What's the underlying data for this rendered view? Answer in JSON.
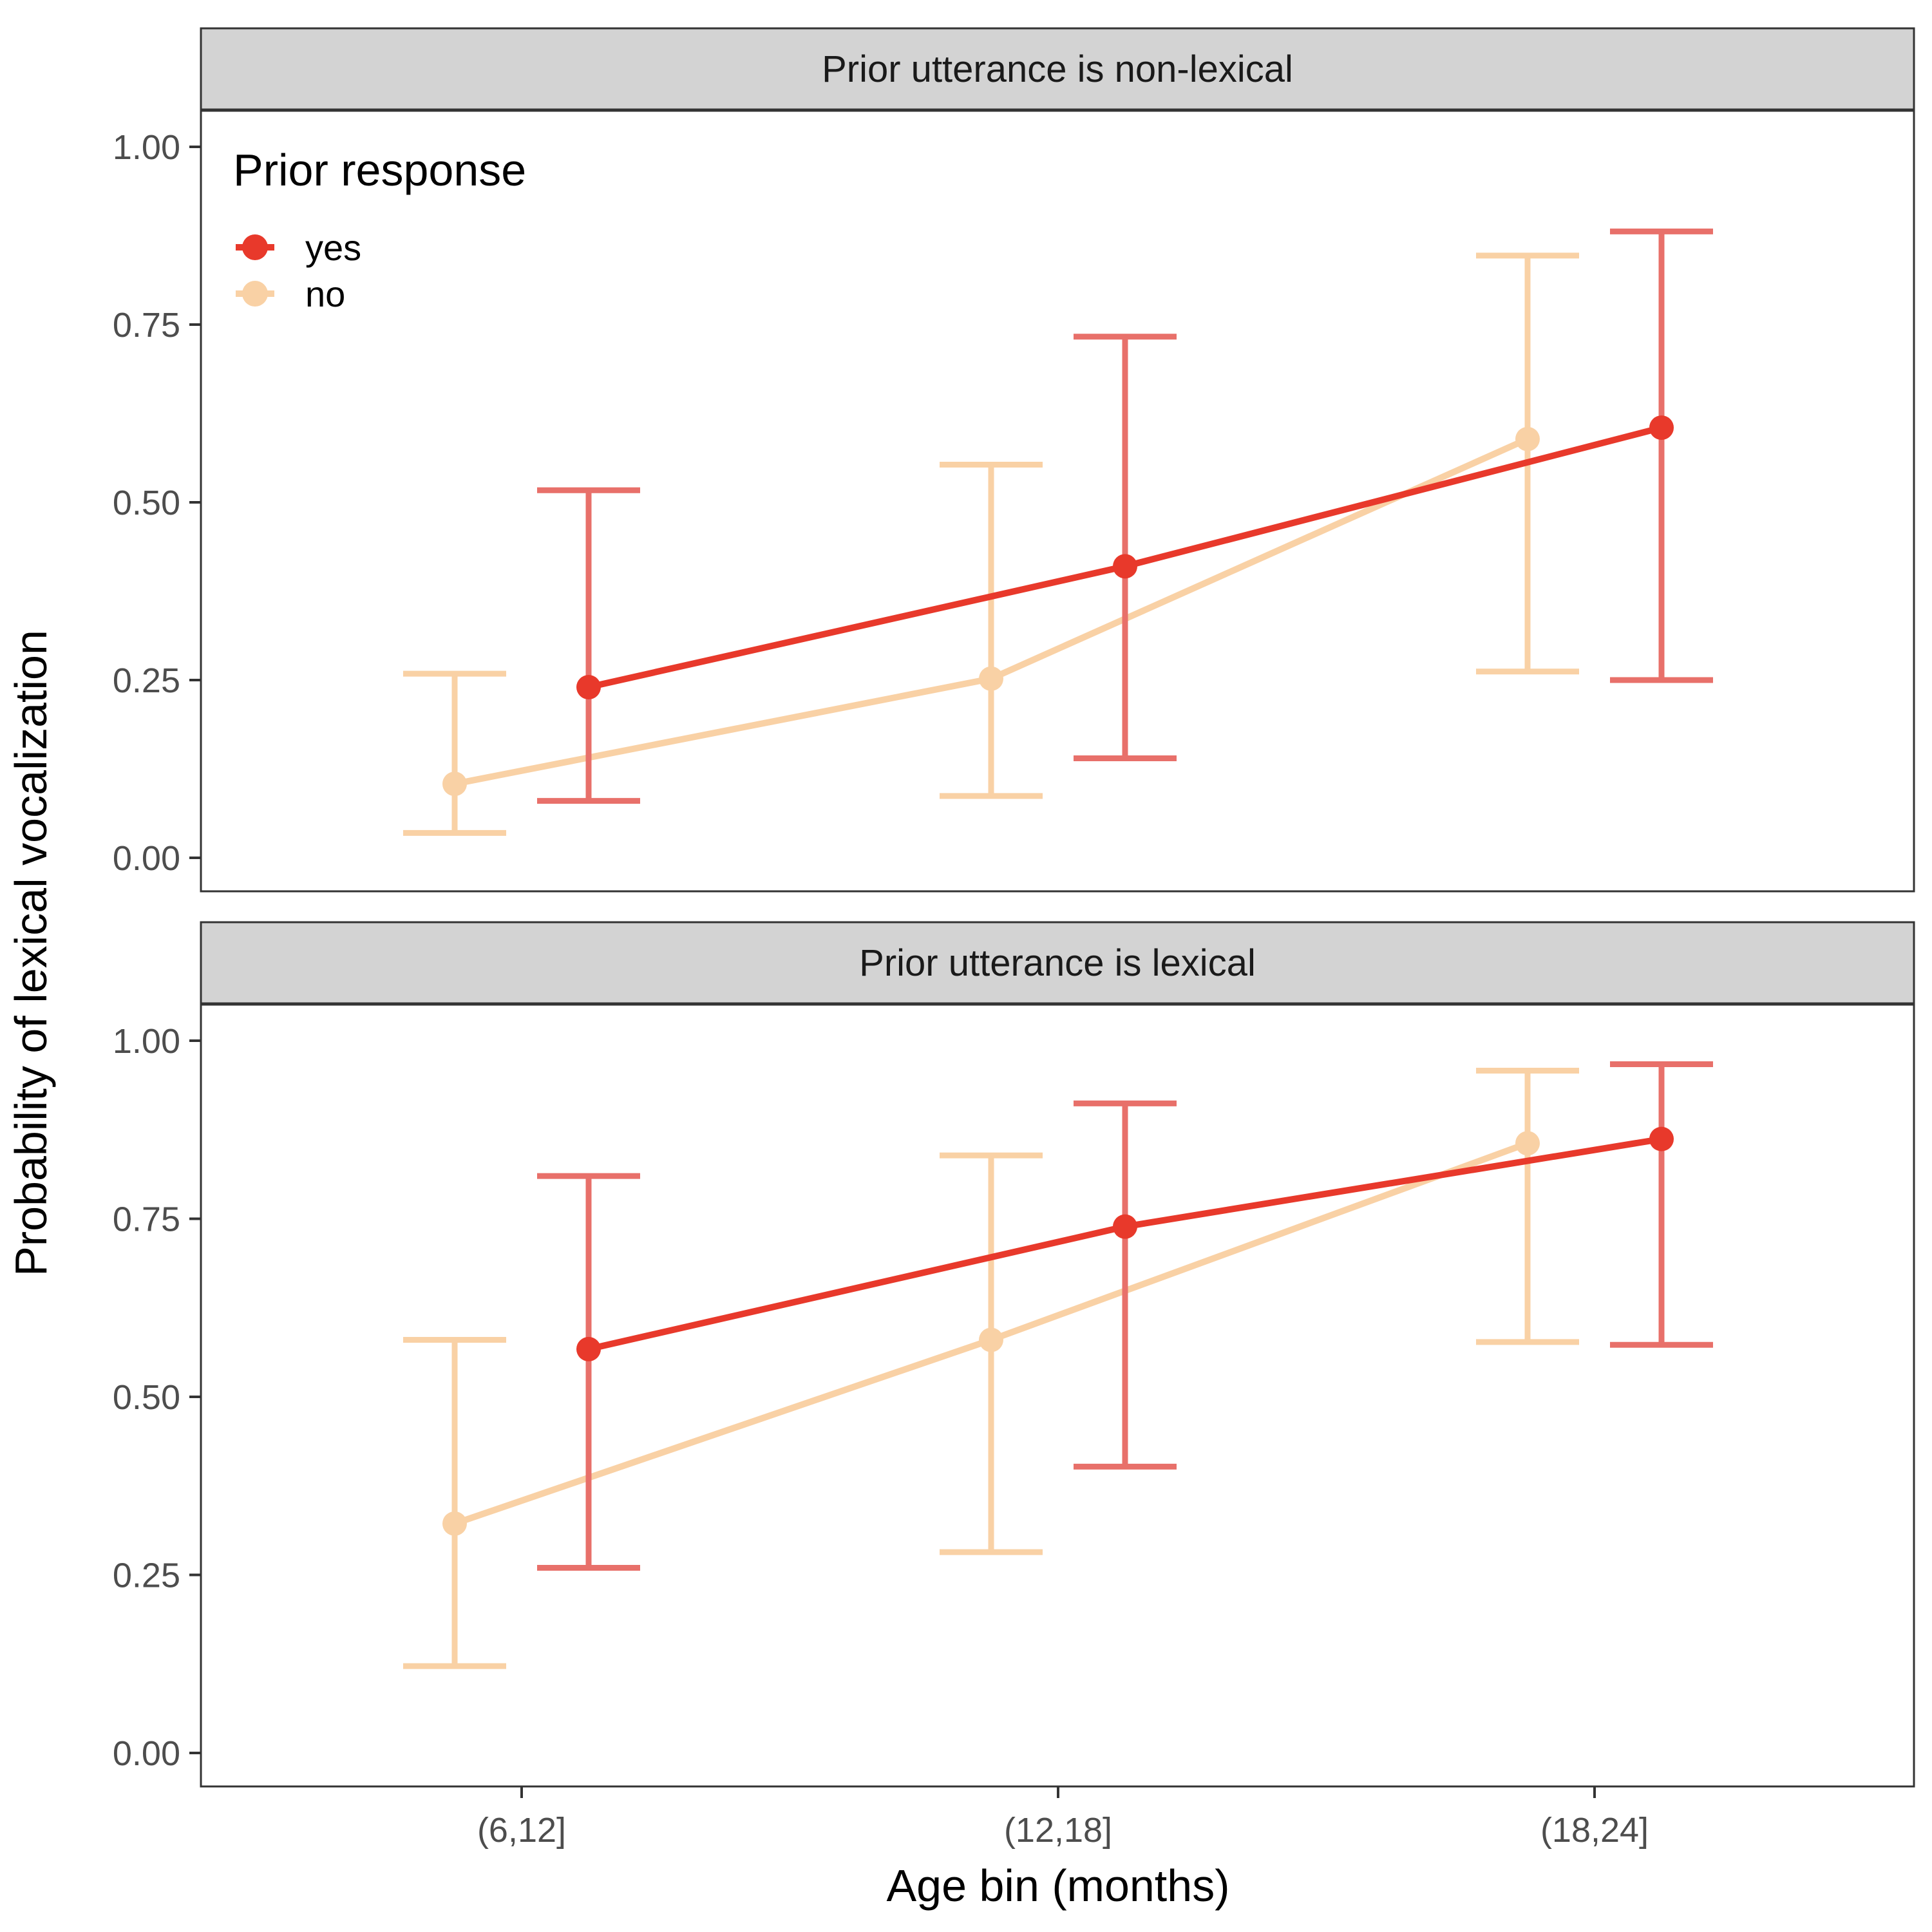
{
  "chart_data": {
    "type": "line",
    "ylabel": "Probability of lexical vocalization",
    "xlabel": "Age bin (months)",
    "categories": [
      "(6,12]",
      "(12,18]",
      "(18,24]"
    ],
    "ylim": [
      0,
      1
    ],
    "yticks": [
      "0.00",
      "0.25",
      "0.50",
      "0.75",
      "1.00"
    ],
    "ytick_values": [
      0,
      0.25,
      0.5,
      0.75,
      1.0
    ],
    "grid": false,
    "legend": {
      "title": "Prior response",
      "position": "top-left inside top panel",
      "entries": [
        "yes",
        "no"
      ]
    },
    "colors": {
      "yes": "#e8392b",
      "no": "#f9d1a5",
      "yes_errorbar": "#e8706a"
    },
    "panels": [
      {
        "strip": "Prior utterance is non-lexical",
        "series": [
          {
            "name": "yes",
            "values": [
              0.24,
              0.41,
              0.605
            ],
            "lower": [
              0.08,
              0.14,
              0.25
            ],
            "upper": [
              0.517,
              0.733,
              0.881
            ]
          },
          {
            "name": "no",
            "values": [
              0.104,
              0.252,
              0.589
            ],
            "lower": [
              0.035,
              0.087,
              0.262
            ],
            "upper": [
              0.259,
              0.553,
              0.847
            ]
          }
        ]
      },
      {
        "strip": "Prior utterance is lexical",
        "series": [
          {
            "name": "yes",
            "values": [
              0.567,
              0.739,
              0.862
            ],
            "lower": [
              0.26,
              0.402,
              0.573
            ],
            "upper": [
              0.81,
              0.912,
              0.967
            ]
          },
          {
            "name": "no",
            "values": [
              0.322,
              0.58,
              0.856
            ],
            "lower": [
              0.122,
              0.282,
              0.577
            ],
            "upper": [
              0.58,
              0.839,
              0.958
            ]
          }
        ]
      }
    ]
  }
}
